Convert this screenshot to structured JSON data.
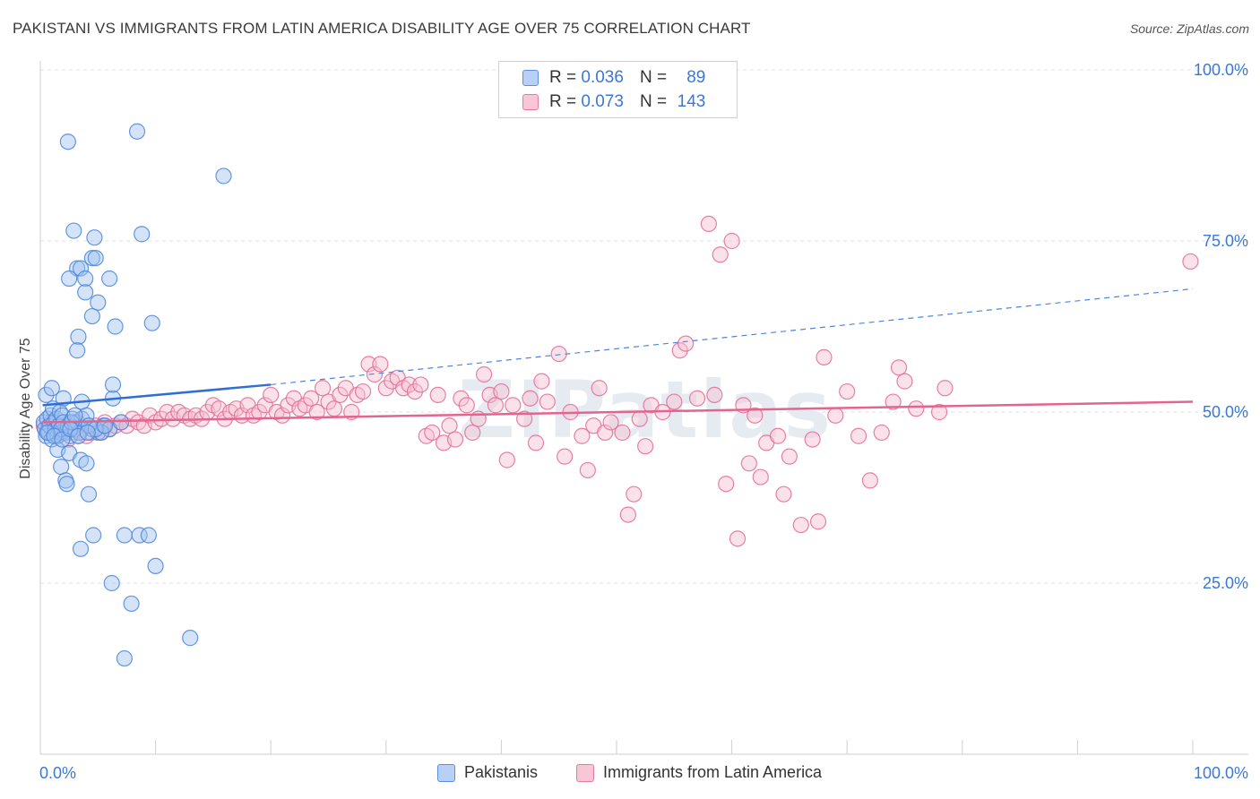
{
  "title": "PAKISTANI VS IMMIGRANTS FROM LATIN AMERICA DISABILITY AGE OVER 75 CORRELATION CHART",
  "source": "Source: ZipAtlas.com",
  "watermark": "ZIPatlas",
  "legend": {
    "r_label": "R =",
    "n_label": "N =",
    "rows": [
      {
        "r": "0.036",
        "n": "89",
        "color": "#5b8fe0",
        "fill": "#b8d0f5"
      },
      {
        "r": "0.073",
        "n": "143",
        "color": "#e87aa0",
        "fill": "#f9c6d6"
      }
    ]
  },
  "bottom_legend": [
    "Pakistanis",
    "Immigrants from Latin America"
  ],
  "chart_data": {
    "type": "scatter",
    "ylabel": "Disability Age Over 75",
    "xlim": [
      0,
      100
    ],
    "ylim": [
      0,
      100
    ],
    "x_tick_labels": [
      "0.0%",
      "100.0%"
    ],
    "y_tick_labels": [
      "100.0%",
      "75.0%",
      "50.0%",
      "25.0%"
    ],
    "y_ticks": [
      100,
      75,
      50,
      25
    ],
    "grid": "horizontal dashed",
    "series": [
      {
        "name": "Pakistanis",
        "color": "#4a86dd",
        "fill": "#9fc0f0",
        "trend": {
          "x0": 0.2,
          "y0": 51.0,
          "x1": 20.0,
          "y1": 54.0,
          "dashed_to_x": 100.0,
          "dashed_to_y": 68.0
        },
        "points": [
          [
            0.3,
            48.5
          ],
          [
            0.4,
            47.5
          ],
          [
            0.5,
            46.5
          ],
          [
            0.6,
            49.0
          ],
          [
            0.7,
            47.0
          ],
          [
            0.8,
            48.0
          ],
          [
            0.9,
            49.5
          ],
          [
            1.0,
            46.0
          ],
          [
            1.1,
            50.5
          ],
          [
            1.2,
            48.5
          ],
          [
            1.3,
            47.5
          ],
          [
            1.4,
            49.0
          ],
          [
            1.5,
            46.5
          ],
          [
            1.6,
            48.0
          ],
          [
            1.7,
            50.0
          ],
          [
            1.8,
            47.0
          ],
          [
            1.9,
            49.5
          ],
          [
            2.0,
            48.5
          ],
          [
            2.2,
            47.0
          ],
          [
            2.4,
            48.0
          ],
          [
            2.6,
            46.5
          ],
          [
            2.8,
            49.0
          ],
          [
            3.0,
            47.5
          ],
          [
            3.2,
            48.5
          ],
          [
            3.4,
            47.0
          ],
          [
            3.6,
            49.0
          ],
          [
            0.5,
            52.5
          ],
          [
            1.0,
            53.5
          ],
          [
            2.0,
            52.0
          ],
          [
            3.6,
            51.5
          ],
          [
            6.3,
            52.0
          ],
          [
            4.5,
            47.5
          ],
          [
            5.0,
            47.0
          ],
          [
            5.5,
            48.0
          ],
          [
            6.0,
            47.5
          ],
          [
            7.0,
            48.5
          ],
          [
            5.3,
            47.0
          ],
          [
            4.0,
            49.5
          ],
          [
            1.5,
            44.5
          ],
          [
            2.5,
            44.0
          ],
          [
            3.5,
            43.0
          ],
          [
            4.0,
            42.5
          ],
          [
            1.8,
            42.0
          ],
          [
            2.2,
            40.0
          ],
          [
            2.3,
            39.5
          ],
          [
            4.2,
            38.0
          ],
          [
            3.5,
            30.0
          ],
          [
            4.6,
            32.0
          ],
          [
            7.3,
            32.0
          ],
          [
            8.6,
            32.0
          ],
          [
            9.4,
            32.0
          ],
          [
            10.0,
            27.5
          ],
          [
            6.2,
            25.0
          ],
          [
            7.9,
            22.0
          ],
          [
            13.0,
            17.0
          ],
          [
            7.3,
            14.0
          ],
          [
            2.4,
            89.5
          ],
          [
            8.4,
            91.0
          ],
          [
            15.9,
            84.5
          ],
          [
            2.9,
            76.5
          ],
          [
            4.7,
            75.5
          ],
          [
            8.8,
            76.0
          ],
          [
            3.2,
            71.0
          ],
          [
            3.5,
            71.0
          ],
          [
            4.5,
            72.5
          ],
          [
            4.8,
            72.5
          ],
          [
            2.5,
            69.5
          ],
          [
            3.9,
            69.5
          ],
          [
            6.0,
            69.5
          ],
          [
            3.9,
            67.5
          ],
          [
            5.0,
            66.0
          ],
          [
            4.5,
            64.0
          ],
          [
            6.5,
            62.5
          ],
          [
            9.7,
            63.0
          ],
          [
            3.3,
            61.0
          ],
          [
            3.2,
            59.0
          ],
          [
            6.3,
            54.0
          ],
          [
            1.8,
            47.5
          ],
          [
            2.7,
            48.5
          ],
          [
            3.0,
            49.5
          ],
          [
            4.2,
            48.0
          ],
          [
            4.8,
            47.5
          ],
          [
            0.6,
            47.0
          ],
          [
            1.2,
            46.5
          ],
          [
            1.9,
            46.0
          ],
          [
            2.6,
            47.5
          ],
          [
            3.3,
            46.5
          ],
          [
            4.1,
            47.0
          ],
          [
            5.6,
            48.0
          ]
        ]
      },
      {
        "name": "Immigrants from Latin America",
        "color": "#e46b94",
        "fill": "#f7bfd1",
        "trend": {
          "x0": 0.2,
          "y0": 48.5,
          "x1": 100.0,
          "y1": 51.5
        },
        "points": [
          [
            0.3,
            48.0
          ],
          [
            0.6,
            47.5
          ],
          [
            0.9,
            48.5
          ],
          [
            1.2,
            47.0
          ],
          [
            1.5,
            46.5
          ],
          [
            1.8,
            48.0
          ],
          [
            2.1,
            47.5
          ],
          [
            2.4,
            46.0
          ],
          [
            2.7,
            47.0
          ],
          [
            3.0,
            48.5
          ],
          [
            3.3,
            46.5
          ],
          [
            3.6,
            47.5
          ],
          [
            4.0,
            46.5
          ],
          [
            4.4,
            47.0
          ],
          [
            4.8,
            48.0
          ],
          [
            5.2,
            47.0
          ],
          [
            5.6,
            48.5
          ],
          [
            6.0,
            47.5
          ],
          [
            6.5,
            48.0
          ],
          [
            7.0,
            48.5
          ],
          [
            7.5,
            48.0
          ],
          [
            8.0,
            49.0
          ],
          [
            8.5,
            48.5
          ],
          [
            9.0,
            48.0
          ],
          [
            9.5,
            49.5
          ],
          [
            10.0,
            48.5
          ],
          [
            10.5,
            49.0
          ],
          [
            11.0,
            50.0
          ],
          [
            11.5,
            49.0
          ],
          [
            12.0,
            50.0
          ],
          [
            12.5,
            49.5
          ],
          [
            13.0,
            49.0
          ],
          [
            13.5,
            49.5
          ],
          [
            14.0,
            49.0
          ],
          [
            14.5,
            50.0
          ],
          [
            15.0,
            51.0
          ],
          [
            15.5,
            50.5
          ],
          [
            16.0,
            49.0
          ],
          [
            16.5,
            50.0
          ],
          [
            17.0,
            50.5
          ],
          [
            17.5,
            49.5
          ],
          [
            18.0,
            51.0
          ],
          [
            18.5,
            49.5
          ],
          [
            19.0,
            50.0
          ],
          [
            19.5,
            51.0
          ],
          [
            20.0,
            52.5
          ],
          [
            20.5,
            50.0
          ],
          [
            21.0,
            49.5
          ],
          [
            21.5,
            51.0
          ],
          [
            22.0,
            52.0
          ],
          [
            22.5,
            50.5
          ],
          [
            23.0,
            51.0
          ],
          [
            23.5,
            52.0
          ],
          [
            24.0,
            50.0
          ],
          [
            24.5,
            53.5
          ],
          [
            25.0,
            51.5
          ],
          [
            25.5,
            50.5
          ],
          [
            26.0,
            52.5
          ],
          [
            26.5,
            53.5
          ],
          [
            27.0,
            50.0
          ],
          [
            27.5,
            52.5
          ],
          [
            28.0,
            53.0
          ],
          [
            28.5,
            57.0
          ],
          [
            29.0,
            55.5
          ],
          [
            29.5,
            57.0
          ],
          [
            30.0,
            53.5
          ],
          [
            30.5,
            54.5
          ],
          [
            31.0,
            55.0
          ],
          [
            31.5,
            53.5
          ],
          [
            32.0,
            54.0
          ],
          [
            32.5,
            53.0
          ],
          [
            33.0,
            54.0
          ],
          [
            33.5,
            46.5
          ],
          [
            34.0,
            47.0
          ],
          [
            34.5,
            52.5
          ],
          [
            35.0,
            45.5
          ],
          [
            35.5,
            48.0
          ],
          [
            36.0,
            46.0
          ],
          [
            36.5,
            52.0
          ],
          [
            37.0,
            51.0
          ],
          [
            37.5,
            47.0
          ],
          [
            38.0,
            49.0
          ],
          [
            38.5,
            55.5
          ],
          [
            39.0,
            52.5
          ],
          [
            39.5,
            51.0
          ],
          [
            40.0,
            53.0
          ],
          [
            40.5,
            43.0
          ],
          [
            41.0,
            51.0
          ],
          [
            42.0,
            49.0
          ],
          [
            42.5,
            52.0
          ],
          [
            43.0,
            45.5
          ],
          [
            43.5,
            54.5
          ],
          [
            44.0,
            51.5
          ],
          [
            45.0,
            58.5
          ],
          [
            45.5,
            43.5
          ],
          [
            46.0,
            50.0
          ],
          [
            47.0,
            46.5
          ],
          [
            47.5,
            41.5
          ],
          [
            48.0,
            48.0
          ],
          [
            48.5,
            53.5
          ],
          [
            49.0,
            47.0
          ],
          [
            49.5,
            48.5
          ],
          [
            50.5,
            47.0
          ],
          [
            51.0,
            35.0
          ],
          [
            51.5,
            38.0
          ],
          [
            52.0,
            49.0
          ],
          [
            52.5,
            45.0
          ],
          [
            53.0,
            51.0
          ],
          [
            54.0,
            50.0
          ],
          [
            55.0,
            51.5
          ],
          [
            55.5,
            59.0
          ],
          [
            56.0,
            60.0
          ],
          [
            57.0,
            52.0
          ],
          [
            58.0,
            77.5
          ],
          [
            59.0,
            73.0
          ],
          [
            60.0,
            75.0
          ],
          [
            58.5,
            52.5
          ],
          [
            59.5,
            39.5
          ],
          [
            60.5,
            31.5
          ],
          [
            61.0,
            51.0
          ],
          [
            61.5,
            42.5
          ],
          [
            62.0,
            49.5
          ],
          [
            62.5,
            40.5
          ],
          [
            63.0,
            45.5
          ],
          [
            64.0,
            46.5
          ],
          [
            64.5,
            38.0
          ],
          [
            65.0,
            43.5
          ],
          [
            66.0,
            33.5
          ],
          [
            67.0,
            46.0
          ],
          [
            67.5,
            34.0
          ],
          [
            68.0,
            58.0
          ],
          [
            69.0,
            49.5
          ],
          [
            70.0,
            53.0
          ],
          [
            71.0,
            46.5
          ],
          [
            72.0,
            40.0
          ],
          [
            73.0,
            47.0
          ],
          [
            74.0,
            51.5
          ],
          [
            74.5,
            56.5
          ],
          [
            75.0,
            54.5
          ],
          [
            76.0,
            50.5
          ],
          [
            78.0,
            50.0
          ],
          [
            78.5,
            53.5
          ],
          [
            99.8,
            72.0
          ]
        ]
      }
    ]
  }
}
